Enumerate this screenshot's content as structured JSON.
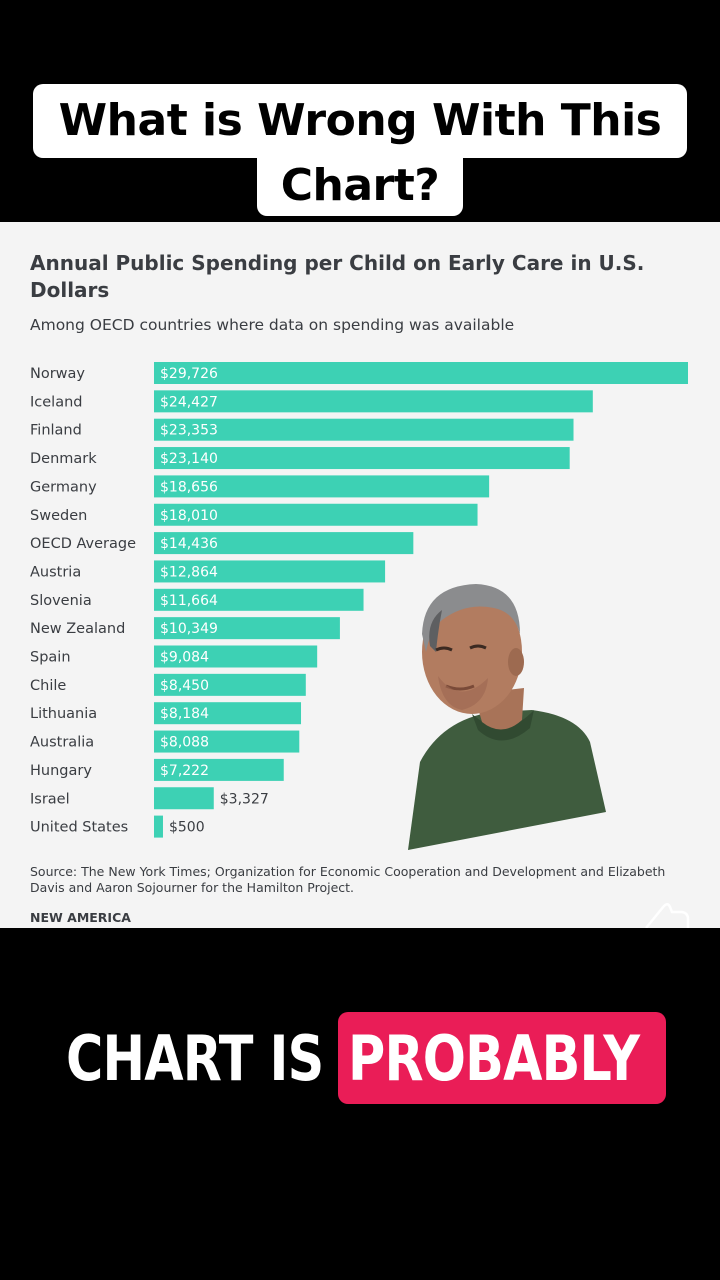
{
  "caption_top": {
    "line1": "What is Wrong With This",
    "line2": "Chart?"
  },
  "chart": {
    "title": "Annual Public Spending per Child on Early Care in U.S. Dollars",
    "subtitle": "Among OECD countries where data on spending was available",
    "source": "Source: The New York Times; Organization for Economic Cooperation and Development and Elizabeth Davis and Aaron Sojourner for the Hamilton Project.",
    "brand": "NEW AMERICA"
  },
  "chart_data": {
    "type": "bar",
    "orientation": "horizontal",
    "title": "Annual Public Spending per Child on Early Care in U.S. Dollars",
    "subtitle": "Among OECD countries where data on spending was available",
    "categories": [
      "Norway",
      "Iceland",
      "Finland",
      "Denmark",
      "Germany",
      "Sweden",
      "OECD Average",
      "Austria",
      "Slovenia",
      "New Zealand",
      "Spain",
      "Chile",
      "Lithuania",
      "Australia",
      "Hungary",
      "Israel",
      "United States"
    ],
    "values": [
      29726,
      24427,
      23353,
      23140,
      18656,
      18010,
      14436,
      12864,
      11664,
      10349,
      9084,
      8450,
      8184,
      8088,
      7222,
      3327,
      500
    ],
    "labels": [
      "$29,726",
      "$24,427",
      "$23,353",
      "$23,140",
      "$18,656",
      "$18,010",
      "$14,436",
      "$12,864",
      "$11,664",
      "$10,349",
      "$9,084",
      "$8,450",
      "$8,184",
      "$8,088",
      "$7,222",
      "$3,327",
      "$500"
    ],
    "bar_color": "#3dd1b4",
    "grid": false
  },
  "caption_bottom": {
    "plain": "CHART IS",
    "highlight": "PROBABLY",
    "highlight_color": "#ea1d57"
  },
  "icons": {
    "presenter": "person-video-overlay",
    "hand": "hand-pointer-icon"
  }
}
